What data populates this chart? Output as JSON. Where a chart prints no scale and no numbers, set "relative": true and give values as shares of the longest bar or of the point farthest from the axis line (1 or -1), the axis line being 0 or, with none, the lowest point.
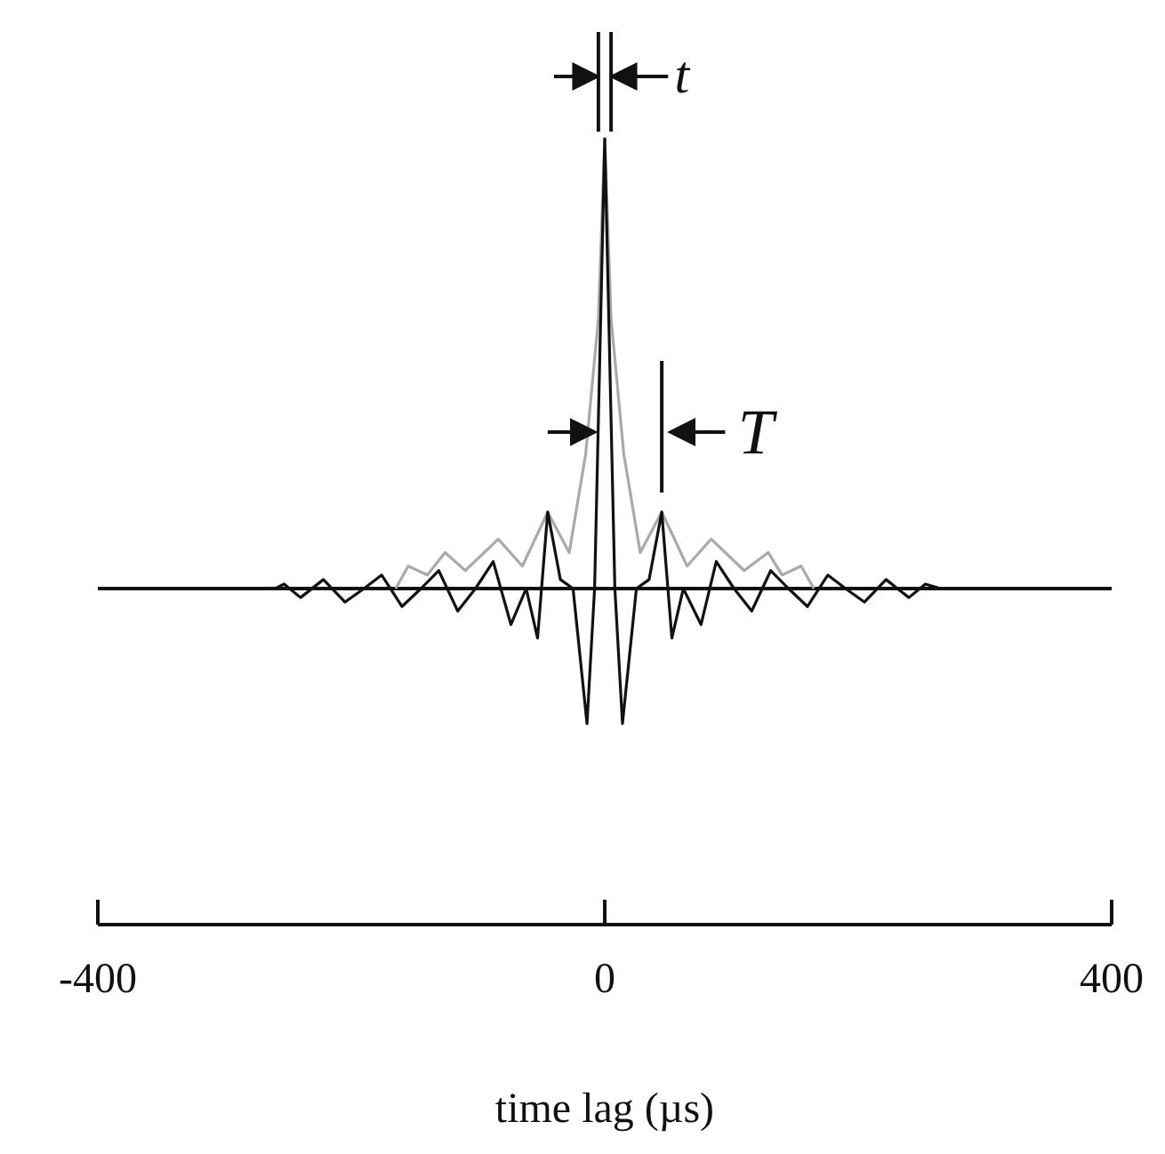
{
  "chart_data": {
    "type": "line",
    "relative": true,
    "xlabel": "time lag (µs)",
    "xlim": [
      -400,
      400
    ],
    "xticks": [
      -400,
      0,
      400
    ],
    "tick_labels": "x",
    "annotations": [
      "t",
      "T"
    ],
    "ref_lines": [
      {
        "axis": "y",
        "value": 0,
        "color": "#111111"
      }
    ],
    "marker": "none",
    "line_style": "solid",
    "series": [
      {
        "color": "#aaaaaa",
        "x": [
          -165,
          -155,
          -140,
          -126,
          -110,
          -84,
          -65,
          -45,
          -28,
          -15,
          -5,
          0,
          5,
          15,
          28,
          45,
          65,
          84,
          110,
          129,
          140,
          155,
          165
        ],
        "values": [
          0,
          0.05,
          0.03,
          0.08,
          0.04,
          0.11,
          0.05,
          0.17,
          0.08,
          0.3,
          0.6,
          1,
          0.6,
          0.3,
          0.08,
          0.17,
          0.05,
          0.11,
          0.04,
          0.08,
          0.03,
          0.05,
          0
        ]
      },
      {
        "color": "#111111",
        "x": [
          -260,
          -253,
          -240,
          -222,
          -205,
          -190,
          -176,
          -160,
          -145,
          -131,
          -116,
          -102,
          -88,
          -74,
          -62,
          -53,
          -45,
          -35,
          -25,
          -14,
          -8,
          0,
          8,
          14,
          25,
          35,
          45,
          53,
          62,
          76,
          88,
          102,
          116,
          131,
          145,
          160,
          176,
          190,
          205,
          222,
          240,
          253,
          265
        ],
        "values": [
          0,
          0.01,
          -0.02,
          0.02,
          -0.03,
          0,
          0.03,
          -0.04,
          0,
          0.04,
          -0.05,
          0,
          0.06,
          -0.08,
          0,
          -0.11,
          0.17,
          0.02,
          0,
          -0.3,
          0,
          1,
          0,
          -0.3,
          0,
          0.02,
          0.17,
          -0.11,
          0,
          -0.08,
          0.06,
          0,
          -0.05,
          0.04,
          0,
          -0.04,
          0.03,
          0,
          -0.03,
          0.02,
          -0.02,
          0.01,
          0
        ]
      }
    ]
  }
}
